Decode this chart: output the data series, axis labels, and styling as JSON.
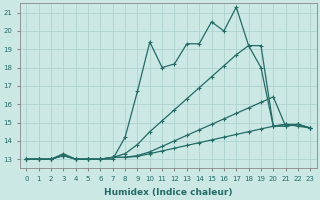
{
  "xlabel": "Humidex (Indice chaleur)",
  "bg_color": "#cce8e5",
  "grid_color": "#aacfcc",
  "line_color": "#236b65",
  "xlim": [
    -0.5,
    23.5
  ],
  "ylim": [
    12.5,
    21.5
  ],
  "xticks": [
    0,
    1,
    2,
    3,
    4,
    5,
    6,
    7,
    8,
    9,
    10,
    11,
    12,
    13,
    14,
    15,
    16,
    17,
    18,
    19,
    20,
    21,
    22,
    23
  ],
  "yticks": [
    13,
    14,
    15,
    16,
    17,
    18,
    19,
    20,
    21
  ],
  "line1_x": [
    0,
    1,
    2,
    3,
    4,
    5,
    6,
    7,
    8,
    9,
    10,
    11,
    12,
    13,
    14,
    15,
    16,
    17,
    18,
    19,
    20,
    21,
    22,
    23
  ],
  "line1_y": [
    13,
    13,
    13,
    13.3,
    13,
    13,
    13,
    13,
    14.2,
    16.7,
    19.4,
    18.0,
    18.2,
    19.3,
    19.3,
    20.5,
    20.0,
    21.3,
    19.2,
    18.0,
    14.8,
    14.9,
    14.8,
    14.7
  ],
  "line2_x": [
    0,
    1,
    2,
    3,
    4,
    5,
    6,
    7,
    8,
    9,
    10,
    11,
    12,
    13,
    14,
    15,
    16,
    17,
    18,
    19,
    20,
    21,
    22,
    23
  ],
  "line2_y": [
    13,
    13,
    13,
    13.2,
    13,
    13,
    13,
    13.1,
    13.3,
    13.8,
    14.5,
    15.1,
    15.7,
    16.3,
    16.9,
    17.5,
    18.1,
    18.7,
    19.2,
    19.2,
    14.8,
    14.9,
    14.9,
    14.7
  ],
  "line3_x": [
    0,
    1,
    2,
    3,
    4,
    5,
    6,
    7,
    8,
    9,
    10,
    11,
    12,
    13,
    14,
    15,
    16,
    17,
    18,
    19,
    20,
    21,
    22,
    23
  ],
  "line3_y": [
    13,
    13,
    13,
    13.2,
    13,
    13,
    13,
    13.1,
    13.1,
    13.2,
    13.4,
    13.7,
    14.0,
    14.3,
    14.6,
    14.9,
    15.2,
    15.5,
    15.8,
    16.1,
    16.4,
    14.8,
    14.9,
    14.7
  ],
  "line4_x": [
    0,
    1,
    2,
    3,
    4,
    5,
    6,
    7,
    8,
    9,
    10,
    11,
    12,
    13,
    14,
    15,
    16,
    17,
    18,
    19,
    20,
    21,
    22,
    23
  ],
  "line4_y": [
    13,
    13,
    13,
    13.2,
    13,
    13,
    13,
    13.1,
    13.1,
    13.15,
    13.3,
    13.45,
    13.6,
    13.75,
    13.9,
    14.05,
    14.2,
    14.35,
    14.5,
    14.65,
    14.8,
    14.8,
    14.9,
    14.7
  ]
}
